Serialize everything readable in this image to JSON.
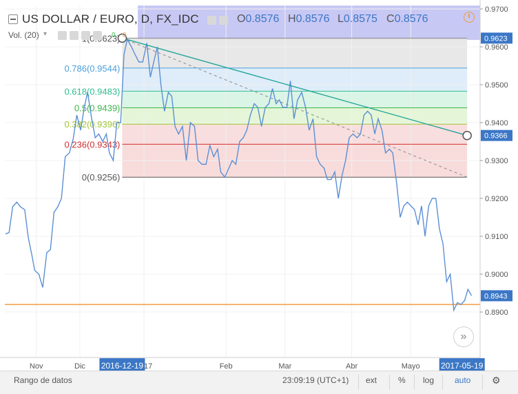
{
  "header": {
    "symbol": "US DOLLAR / EURO, D, FX_IDC",
    "ohlc": [
      {
        "key": "O",
        "value": "0.8576"
      },
      {
        "key": "H",
        "value": "0.8576"
      },
      {
        "key": "L",
        "value": "0.8575"
      },
      {
        "key": "C",
        "value": "0.8576"
      }
    ],
    "volume_label": "Vol. (20)",
    "volume_values": [
      "0",
      "0"
    ],
    "icons": [
      "collapse-icon",
      "eye-icon",
      "settings-icon",
      "close-icon",
      "more-icon",
      "clock-icon"
    ]
  },
  "bottom_bar": {
    "date_range": "Rango de datos",
    "time": "23:09:19 (UTC+1)",
    "ext": "ext",
    "percent": "%",
    "log": "log",
    "auto": "auto",
    "auto_active": true,
    "settings_icon": "gear-icon"
  },
  "scroll_button_icon": "double-chevron-right-icon",
  "colors": {
    "price_line": "#5b8fd5",
    "trend_line": "#26a69a",
    "axis_highlight": "#3b77c6",
    "horizontal_line": "#f29b40",
    "header_band": "#c8c8f4"
  },
  "chart_data": {
    "type": "line",
    "title": "US DOLLAR / EURO, D, FX_IDC",
    "xlabel": "",
    "ylabel": "",
    "ylim": [
      0.882,
      0.9705
    ],
    "y_ticks": [
      0.97,
      0.96,
      0.95,
      0.94,
      0.93,
      0.92,
      0.91,
      0.9,
      0.89
    ],
    "y_tick_labels": [
      "0.9700",
      "0.9600",
      "0.9500",
      "0.9400",
      "0.9300",
      "0.9200",
      "0.9100",
      "0.9000",
      "0.8900"
    ],
    "x_ticks": [
      {
        "t": 0.12,
        "label": "Nov"
      },
      {
        "t": 0.29,
        "label": "Dic"
      },
      {
        "t": 0.54,
        "label": "2017"
      },
      {
        "t": 0.86,
        "label": "Feb"
      },
      {
        "t": 1.09,
        "label": "Mar"
      },
      {
        "t": 1.35,
        "label": "Abr"
      },
      {
        "t": 1.58,
        "label": "Mayo"
      }
    ],
    "x_highlight_labels": [
      {
        "t": 0.455,
        "label": "2016-12-19"
      },
      {
        "t": 1.78,
        "label": "2017-05-19"
      }
    ],
    "y_highlight_labels": [
      {
        "value": 0.9623,
        "label": "0.9623",
        "color": "#3b77c6"
      },
      {
        "value": 0.9366,
        "label": "0.9366",
        "color": "#3b77c6"
      },
      {
        "value": 0.8943,
        "label": "0.8943",
        "color": "#3b77c6"
      }
    ],
    "horizontal_line": {
      "value": 0.892,
      "color": "#f29b40"
    },
    "series": [
      {
        "values": [
          [
            0.0,
            0.9106
          ],
          [
            0.014,
            0.911
          ],
          [
            0.028,
            0.9178
          ],
          [
            0.044,
            0.919
          ],
          [
            0.058,
            0.9178
          ],
          [
            0.075,
            0.917
          ],
          [
            0.089,
            0.9096
          ],
          [
            0.103,
            0.905
          ],
          [
            0.114,
            0.901
          ],
          [
            0.13,
            0.9
          ],
          [
            0.145,
            0.8965
          ],
          [
            0.161,
            0.9057
          ],
          [
            0.175,
            0.9065
          ],
          [
            0.189,
            0.9163
          ],
          [
            0.204,
            0.9178
          ],
          [
            0.218,
            0.92
          ],
          [
            0.233,
            0.931
          ],
          [
            0.249,
            0.932
          ],
          [
            0.264,
            0.9357
          ],
          [
            0.278,
            0.942
          ],
          [
            0.293,
            0.938
          ],
          [
            0.307,
            0.944
          ],
          [
            0.32,
            0.948
          ],
          [
            0.336,
            0.941
          ],
          [
            0.35,
            0.936
          ],
          [
            0.364,
            0.937
          ],
          [
            0.379,
            0.935
          ],
          [
            0.393,
            0.937
          ],
          [
            0.405,
            0.932
          ],
          [
            0.42,
            0.93
          ],
          [
            0.434,
            0.94
          ],
          [
            0.449,
            0.94
          ],
          [
            0.462,
            0.958
          ],
          [
            0.475,
            0.962
          ],
          [
            0.491,
            0.96
          ],
          [
            0.505,
            0.958
          ],
          [
            0.52,
            0.956
          ],
          [
            0.535,
            0.956
          ],
          [
            0.551,
            0.961
          ],
          [
            0.565,
            0.952
          ],
          [
            0.578,
            0.956
          ],
          [
            0.592,
            0.96
          ],
          [
            0.606,
            0.95
          ],
          [
            0.62,
            0.943
          ],
          [
            0.635,
            0.948
          ],
          [
            0.648,
            0.947
          ],
          [
            0.661,
            0.939
          ],
          [
            0.675,
            0.937
          ],
          [
            0.69,
            0.939
          ],
          [
            0.705,
            0.93
          ],
          [
            0.721,
            0.94
          ],
          [
            0.737,
            0.939
          ],
          [
            0.751,
            0.93
          ],
          [
            0.766,
            0.929
          ],
          [
            0.782,
            0.929
          ],
          [
            0.797,
            0.934
          ],
          [
            0.812,
            0.931
          ],
          [
            0.827,
            0.933
          ],
          [
            0.839,
            0.927
          ],
          [
            0.855,
            0.9256
          ],
          [
            0.871,
            0.928
          ],
          [
            0.884,
            0.93
          ],
          [
            0.898,
            0.929
          ],
          [
            0.913,
            0.935
          ],
          [
            0.927,
            0.936
          ],
          [
            0.941,
            0.938
          ],
          [
            0.955,
            0.942
          ],
          [
            0.97,
            0.945
          ],
          [
            0.984,
            0.944
          ],
          [
            0.998,
            0.939
          ],
          [
            1.013,
            0.944
          ],
          [
            1.027,
            0.945
          ],
          [
            1.041,
            0.949
          ],
          [
            1.055,
            0.945
          ],
          [
            1.068,
            0.946
          ],
          [
            1.082,
            0.944
          ],
          [
            1.097,
            0.944
          ],
          [
            1.111,
            0.951
          ],
          [
            1.125,
            0.941
          ],
          [
            1.139,
            0.946
          ],
          [
            1.155,
            0.948
          ],
          [
            1.17,
            0.944
          ],
          [
            1.184,
            0.938
          ],
          [
            1.199,
            0.941
          ],
          [
            1.213,
            0.931
          ],
          [
            1.227,
            0.929
          ],
          [
            1.242,
            0.928
          ],
          [
            1.255,
            0.925
          ],
          [
            1.27,
            0.925
          ],
          [
            1.284,
            0.927
          ],
          [
            1.298,
            0.92
          ],
          [
            1.312,
            0.926
          ],
          [
            1.326,
            0.93
          ],
          [
            1.34,
            0.936
          ],
          [
            1.355,
            0.937
          ],
          [
            1.371,
            0.936
          ],
          [
            1.384,
            0.937
          ],
          [
            1.398,
            0.942
          ],
          [
            1.412,
            0.943
          ],
          [
            1.426,
            0.942
          ],
          [
            1.44,
            0.937
          ],
          [
            1.453,
            0.941
          ],
          [
            1.468,
            0.938
          ],
          [
            1.482,
            0.932
          ],
          [
            1.497,
            0.933
          ],
          [
            1.51,
            0.932
          ],
          [
            1.525,
            0.924
          ],
          [
            1.539,
            0.915
          ],
          [
            1.553,
            0.918
          ],
          [
            1.567,
            0.919
          ],
          [
            1.581,
            0.918
          ],
          [
            1.595,
            0.917
          ],
          [
            1.609,
            0.913
          ],
          [
            1.622,
            0.918
          ],
          [
            1.636,
            0.91
          ],
          [
            1.65,
            0.918
          ],
          [
            1.664,
            0.92
          ],
          [
            1.678,
            0.92
          ],
          [
            1.692,
            0.912
          ],
          [
            1.706,
            0.908
          ],
          [
            1.72,
            0.898
          ],
          [
            1.734,
            0.9
          ],
          [
            1.748,
            0.8905
          ],
          [
            1.762,
            0.8925
          ],
          [
            1.776,
            0.892
          ],
          [
            1.79,
            0.893
          ],
          [
            1.803,
            0.896
          ],
          [
            1.817,
            0.8943
          ]
        ],
        "color": "#5b8fd5"
      }
    ],
    "fibonacci": {
      "start": {
        "t": 0.455,
        "value": 0.9623
      },
      "end": {
        "t": 1.8,
        "value": 0.9256
      },
      "levels": [
        {
          "ratio": 1,
          "value": 0.9623,
          "label": "1(0.9623)",
          "line_color": "#888888",
          "fill": "#e4e4e4",
          "text_color": "#555555"
        },
        {
          "ratio": 0.786,
          "value": 0.9544,
          "label": "0.786(0.9544)",
          "line_color": "#4a9fd9",
          "fill": "#d8eaf8",
          "text_color": "#4a9fd9"
        },
        {
          "ratio": 0.618,
          "value": 0.9483,
          "label": "0.618(0.9483)",
          "line_color": "#2fbf8f",
          "fill": "#d3f2e2",
          "text_color": "#2fbf8f"
        },
        {
          "ratio": 0.5,
          "value": 0.9439,
          "label": "0.5(0.9439)",
          "line_color": "#3cb44b",
          "fill": "#dff4d0",
          "text_color": "#3cb44b"
        },
        {
          "ratio": 0.382,
          "value": 0.9396,
          "label": "0.382(0.9396)",
          "line_color": "#9dc634",
          "fill": "#f7d8d8",
          "text_color": "#9dc634"
        },
        {
          "ratio": 0.236,
          "value": 0.9343,
          "label": "0.236(0.9343)",
          "line_color": "#d03030",
          "fill": "#f7d6d6",
          "text_color": "#d03030"
        },
        {
          "ratio": 0,
          "value": 0.9256,
          "label": "0(0.9256)",
          "line_color": "#555555",
          "fill": null,
          "text_color": "#555555"
        }
      ]
    },
    "trend_line": {
      "start": {
        "t": 0.455,
        "value": 0.9623
      },
      "end": {
        "t": 1.8,
        "value": 0.9366
      },
      "color": "#26a69a"
    },
    "grid": true
  }
}
